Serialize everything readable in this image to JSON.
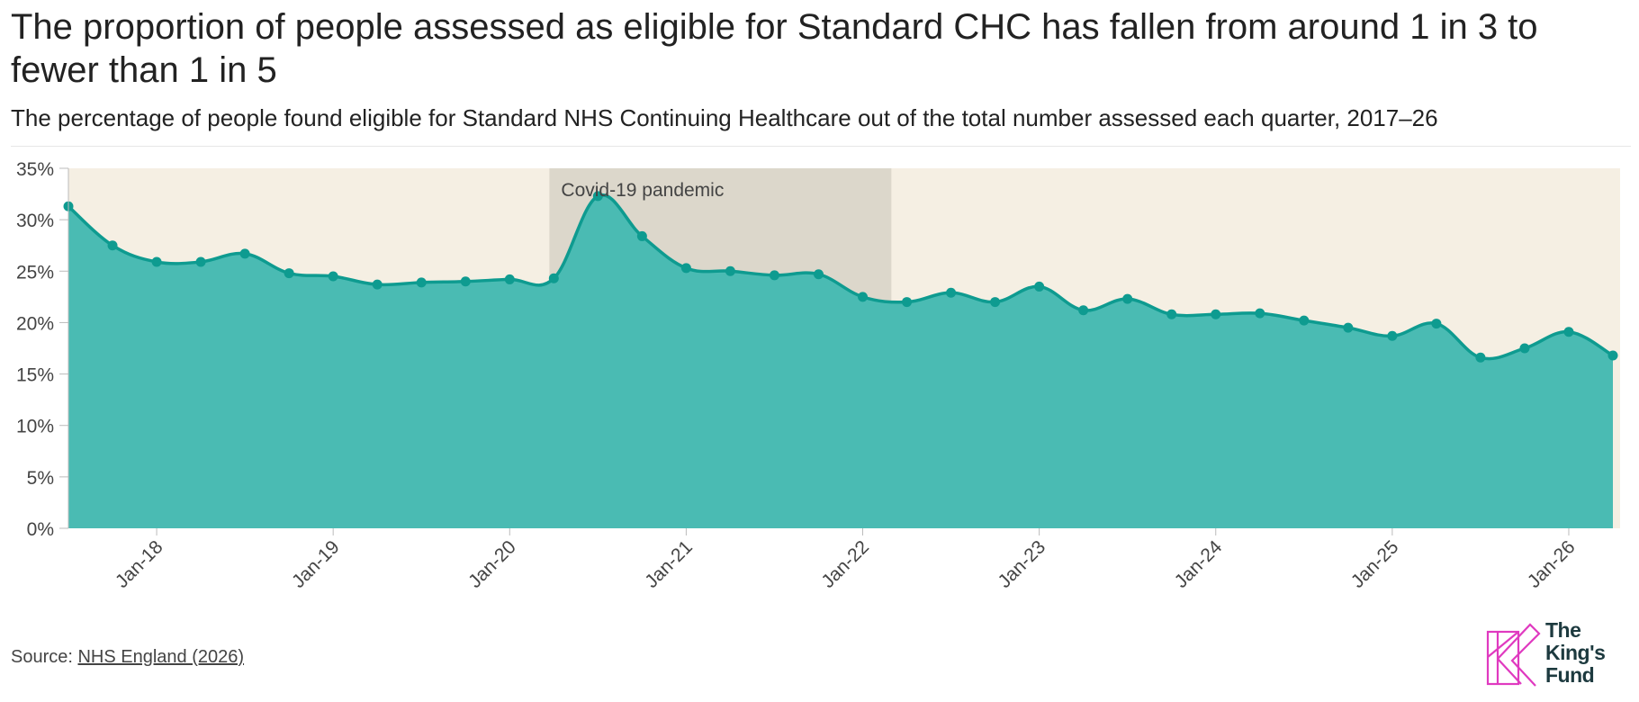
{
  "title": "The proportion of people assessed as eligible for Standard CHC has fallen from around 1 in 3 to fewer than 1 in 5",
  "subtitle": "The percentage of people found eligible for Standard NHS Continuing Healthcare out of the total number assessed each quarter, 2017–26",
  "source": {
    "prefix": "Source: ",
    "link_text": "NHS England (2026)"
  },
  "logo": {
    "line1": "The",
    "line2": "King's",
    "line3": "Fund"
  },
  "colors": {
    "background_band": "#f5efe3",
    "area_fill": "#4abbb3",
    "line": "#0e9b90",
    "covid_band": "#5f5e52",
    "logo_mark": "#e03ac0"
  },
  "chart_data": {
    "type": "area",
    "x": [
      "Jul-17",
      "Oct-17",
      "Jan-18",
      "Apr-18",
      "Jul-18",
      "Oct-18",
      "Jan-19",
      "Apr-19",
      "Jul-19",
      "Oct-19",
      "Jan-20",
      "Apr-20",
      "Jul-20",
      "Oct-20",
      "Jan-21",
      "Apr-21",
      "Jul-21",
      "Oct-21",
      "Jan-22",
      "Apr-22",
      "Jul-22",
      "Oct-22",
      "Jan-23",
      "Apr-23",
      "Jul-23",
      "Oct-23",
      "Jan-24",
      "Apr-24",
      "Jul-24",
      "Oct-24",
      "Jan-25",
      "Apr-25",
      "Jul-25",
      "Oct-25",
      "Jan-26",
      "Apr-26"
    ],
    "series": [
      {
        "values": [
          31.3,
          27.5,
          25.9,
          25.9,
          26.7,
          24.8,
          24.5,
          23.7,
          23.9,
          24.0,
          24.2,
          24.3,
          32.3,
          28.4,
          25.3,
          25.0,
          24.6,
          24.7,
          22.5,
          22.0,
          22.9,
          22.0,
          23.5,
          21.2,
          22.3,
          20.8,
          20.8,
          20.9,
          20.2,
          19.5,
          18.7,
          19.9,
          16.6,
          17.5,
          19.1,
          16.8
        ]
      }
    ],
    "x_tick_labels": [
      "Jan-18",
      "Jan-19",
      "Jan-20",
      "Jan-21",
      "Jan-22",
      "Jan-23",
      "Jan-24",
      "Jan-25",
      "Jan-26"
    ],
    "y_tick_labels": [
      "0%",
      "5%",
      "10%",
      "15%",
      "20%",
      "25%",
      "30%",
      "35%"
    ],
    "ylim": [
      0,
      35
    ],
    "annotation": {
      "label": "Covid-19 pandemic",
      "start": "Apr-20",
      "end": "Apr-22"
    }
  }
}
